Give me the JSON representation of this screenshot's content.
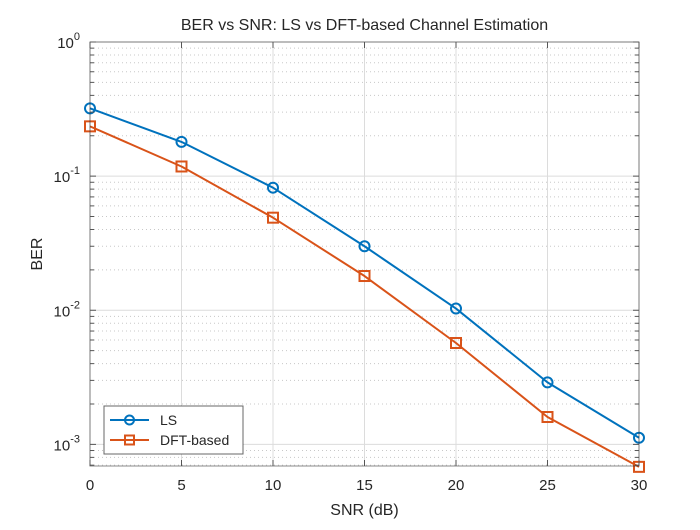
{
  "chart_data": {
    "type": "line",
    "title": "BER vs SNR: LS vs DFT-based Channel Estimation",
    "xlabel": "SNR (dB)",
    "ylabel": "BER",
    "x": [
      0,
      5,
      10,
      15,
      20,
      25,
      30
    ],
    "xlim": [
      0,
      30
    ],
    "ylim": [
      0.00069,
      1
    ],
    "yscale": "log",
    "xticks": [
      0,
      5,
      10,
      15,
      20,
      25,
      30
    ],
    "xtick_labels": [
      "0",
      "5",
      "10",
      "15",
      "20",
      "25",
      "30"
    ],
    "yticks": [
      1,
      0.1,
      0.01,
      0.001
    ],
    "ytick_labels": [
      {
        "base": "10",
        "exp": "0"
      },
      {
        "base": "10",
        "exp": "-1"
      },
      {
        "base": "10",
        "exp": "-2"
      },
      {
        "base": "10",
        "exp": "-3"
      }
    ],
    "grid": true,
    "minor_grid": true,
    "legend_position": "bottom-left",
    "series": [
      {
        "name": "LS",
        "color": "#0072BD",
        "marker": "circle",
        "values": [
          0.32,
          0.18,
          0.082,
          0.03,
          0.0103,
          0.0029,
          0.00112
        ]
      },
      {
        "name": "DFT-based",
        "color": "#D95319",
        "marker": "square",
        "values": [
          0.235,
          0.118,
          0.049,
          0.018,
          0.0057,
          0.0016,
          0.00068
        ]
      }
    ]
  }
}
